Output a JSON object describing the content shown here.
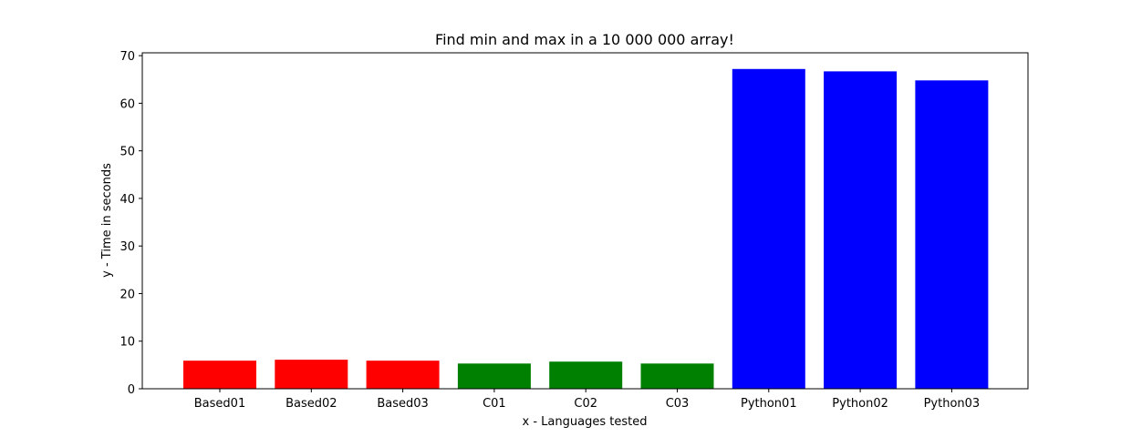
{
  "chart_data": {
    "type": "bar",
    "title": "Find min and max in a 10 000 000 array!",
    "xlabel": "x - Languages tested",
    "ylabel": "y - Time in seconds",
    "categories": [
      "Based01",
      "Based02",
      "Based03",
      "C01",
      "C02",
      "C03",
      "Python01",
      "Python02",
      "Python03"
    ],
    "values": [
      5.9,
      6.1,
      5.9,
      5.3,
      5.7,
      5.3,
      67.2,
      66.7,
      64.8
    ],
    "colors": [
      "#ff0000",
      "#ff0000",
      "#ff0000",
      "#008000",
      "#008000",
      "#008000",
      "#0000ff",
      "#0000ff",
      "#0000ff"
    ],
    "ylim": [
      0,
      70.6
    ],
    "yticks": [
      0,
      10,
      20,
      30,
      40,
      50,
      60,
      70
    ],
    "grid": false,
    "legend": "none"
  }
}
